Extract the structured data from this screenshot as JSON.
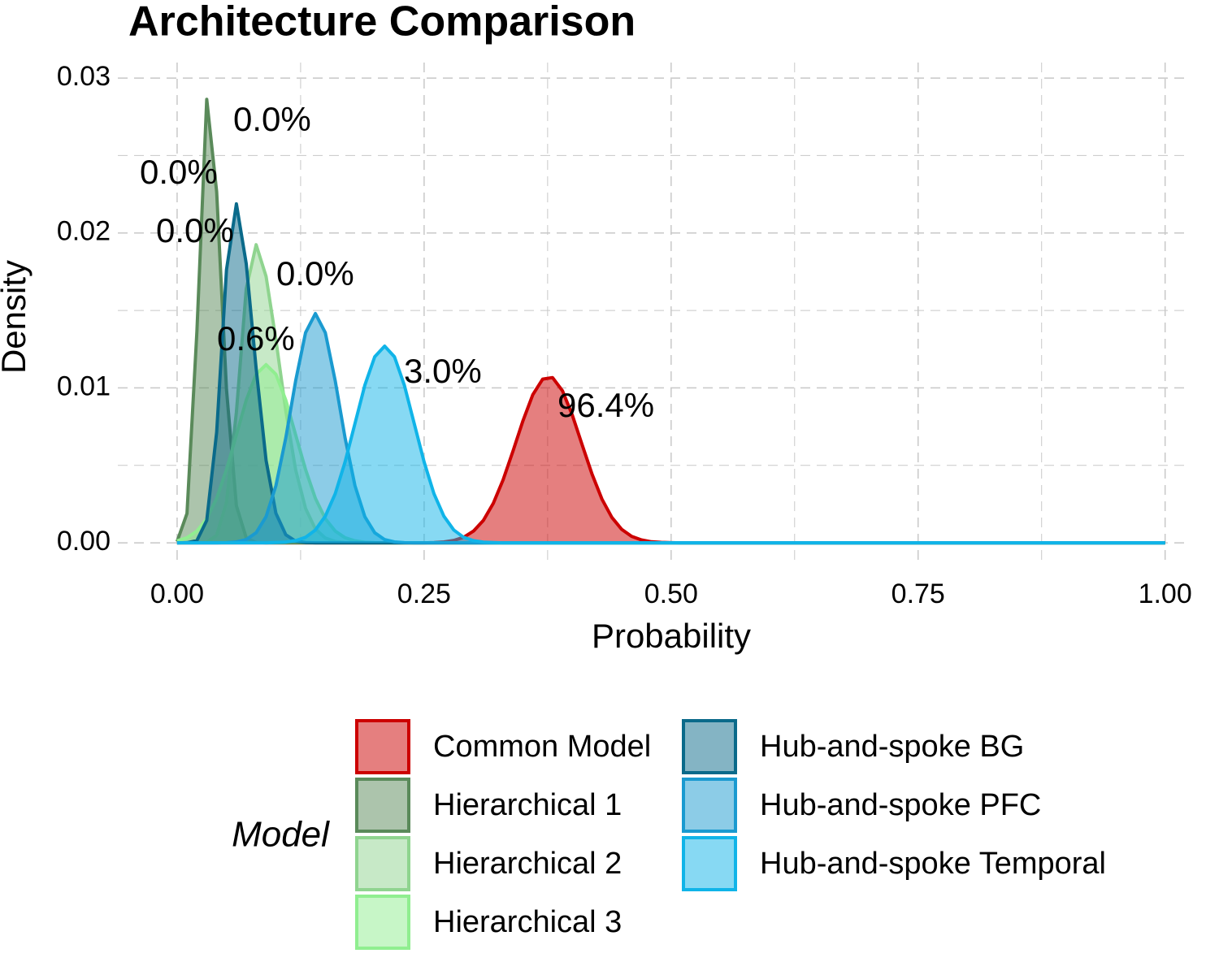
{
  "chart_data": {
    "type": "density",
    "title": "Architecture Comparison",
    "x_label": "Probability",
    "y_label": "Density",
    "legend_title": "Model",
    "xlim": [
      -0.06,
      1.02
    ],
    "ylim": [
      -0.0012,
      0.031
    ],
    "xticks": [
      {
        "value": 0,
        "label": "0.00"
      },
      {
        "value": 0.25,
        "label": "0.25"
      },
      {
        "value": 0.5,
        "label": "0.50"
      },
      {
        "value": 0.75,
        "label": "0.75"
      },
      {
        "value": 1,
        "label": "1.00"
      }
    ],
    "yticks": [
      {
        "value": 0,
        "label": "0.00"
      },
      {
        "value": 0.01,
        "label": "0.01"
      },
      {
        "value": 0.02,
        "label": "0.02"
      },
      {
        "value": 0.03,
        "label": "0.03"
      }
    ],
    "xminor": [
      0.125,
      0.375,
      0.625,
      0.875
    ],
    "yminor": [
      0.005,
      0.015,
      0.025
    ],
    "grid": true,
    "fill_opacity": 0.5,
    "x": [
      0,
      0.01,
      0.02,
      0.03,
      0.04,
      0.05,
      0.06,
      0.07,
      0.08,
      0.09,
      0.1,
      0.11,
      0.12,
      0.13,
      0.14,
      0.15,
      0.16,
      0.17,
      0.18,
      0.19,
      0.2,
      0.21,
      0.22,
      0.23,
      0.24,
      0.25,
      0.26,
      0.27,
      0.28,
      0.29,
      0.3,
      0.31,
      0.32,
      0.33,
      0.34,
      0.35,
      0.36,
      0.37,
      0.38,
      0.39,
      0.4,
      0.41,
      0.42,
      0.43,
      0.44,
      0.45,
      0.46,
      0.47,
      0.48,
      0.49,
      0.5,
      0.51,
      0.52,
      0.6,
      0.7,
      0.8,
      0.9,
      1
    ],
    "series": [
      {
        "name": "Common Model",
        "color": "#cc0000",
        "probability": 96.4,
        "probability_label": "96.4%",
        "values": [
          0,
          0,
          0,
          0,
          0,
          0,
          0,
          0,
          0,
          0,
          0,
          0,
          0,
          0,
          0,
          0,
          0,
          0,
          0,
          0,
          0,
          0,
          0,
          0,
          0,
          0,
          2e-05,
          6e-05,
          0.00016,
          0.00036,
          0.00076,
          0.00145,
          0.00255,
          0.00407,
          0.00593,
          0.00788,
          0.00956,
          0.01057,
          0.01067,
          0.00982,
          0.00825,
          0.00632,
          0.00442,
          0.00282,
          0.00164,
          0.00087,
          0.00042,
          0.00019,
          7e-05,
          3e-05,
          1e-05,
          0,
          0,
          0,
          0,
          0,
          0,
          0
        ]
      },
      {
        "name": "Hierarchical 1",
        "color": "#5a8a5a",
        "probability": 0.0,
        "probability_label": "0.0%",
        "values": [
          8e-05,
          0.0019,
          0.01365,
          0.02863,
          0.02266,
          0.0099,
          0.00239,
          0.00032,
          2e-05,
          0,
          0,
          0,
          0,
          0,
          0,
          0,
          0,
          0,
          0,
          0,
          0,
          0,
          0,
          0,
          0,
          0,
          0,
          0,
          0,
          0,
          0,
          0,
          0,
          0,
          0,
          0,
          0,
          0,
          0,
          0,
          0,
          0,
          0,
          0,
          0,
          0,
          0,
          0,
          0,
          0,
          0,
          0,
          0,
          0,
          0,
          0,
          0,
          0
        ]
      },
      {
        "name": "Hierarchical 2",
        "color": "#8fd48f",
        "probability": 0.0,
        "probability_label": "0.0%",
        "values": [
          0,
          0,
          0,
          5e-05,
          0.00048,
          0.00261,
          0.00844,
          0.01639,
          0.01924,
          0.0172,
          0.01311,
          0.00851,
          0.00471,
          0.00222,
          0.00089,
          0.00031,
          9e-05,
          2e-05,
          0,
          0,
          0,
          0,
          0,
          0,
          0,
          0,
          0,
          0,
          0,
          0,
          0,
          0,
          0,
          0,
          0,
          0,
          0,
          0,
          0,
          0,
          0,
          0,
          0,
          0,
          0,
          0,
          0,
          0,
          0,
          0,
          0,
          0,
          0,
          0,
          0,
          0,
          0,
          0
        ]
      },
      {
        "name": "Hierarchical 3",
        "color": "#90ee90",
        "probability": 0.6,
        "probability_label": "0.6%",
        "values": [
          0.00013,
          0.00033,
          0.00076,
          0.00156,
          0.00287,
          0.00473,
          0.00697,
          0.00921,
          0.01088,
          0.0115,
          0.01088,
          0.00921,
          0.00697,
          0.00473,
          0.00287,
          0.00156,
          0.00076,
          0.00033,
          0.00013,
          4e-05,
          1e-05,
          0,
          0,
          0,
          0,
          0,
          0,
          0,
          0,
          0,
          0,
          0,
          0,
          0,
          0,
          0,
          0,
          0,
          0,
          0,
          0,
          0,
          0,
          0,
          0,
          0,
          0,
          0,
          0,
          0,
          0,
          0,
          0,
          0,
          0,
          0,
          0,
          0
        ]
      },
      {
        "name": "Hub-and-spoke BG",
        "color": "#0a6a8a",
        "probability": 0.0,
        "probability_label": "0.0%",
        "values": [
          0,
          1e-05,
          0.00015,
          0.00145,
          0.00714,
          0.01762,
          0.02188,
          0.01802,
          0.01126,
          0.00533,
          0.00191,
          0.00052,
          0.00011,
          2e-05,
          0,
          0,
          0,
          0,
          0,
          0,
          0,
          0,
          0,
          0,
          0,
          0,
          0,
          0,
          0,
          0,
          0,
          0,
          0,
          0,
          0,
          0,
          0,
          0,
          0,
          0,
          0,
          0,
          0,
          0,
          0,
          0,
          0,
          0,
          0,
          0,
          0,
          0,
          0,
          0,
          0,
          0,
          0,
          0
        ]
      },
      {
        "name": "Hub-and-spoke PFC",
        "color": "#1a9ad0",
        "probability": 0.0,
        "probability_label": "0.0%",
        "values": [
          0,
          0,
          0,
          0,
          0,
          1e-05,
          6e-05,
          0.00021,
          0.00065,
          0.00169,
          0.00369,
          0.00678,
          0.01046,
          0.01357,
          0.0148,
          0.01357,
          0.01046,
          0.00678,
          0.00369,
          0.00169,
          0.00065,
          0.00021,
          6e-05,
          1e-05,
          0,
          0,
          0,
          0,
          0,
          0,
          0,
          0,
          0,
          0,
          0,
          0,
          0,
          0,
          0,
          0,
          0,
          0,
          0,
          0,
          0,
          0,
          0,
          0,
          0,
          0,
          0,
          0,
          0,
          0,
          0,
          0,
          0,
          0
        ]
      },
      {
        "name": "Hub-and-spoke Temporal",
        "color": "#10b4e8",
        "probability": 3.0,
        "probability_label": "3.0%",
        "values": [
          0,
          0,
          0,
          0,
          0,
          0,
          0,
          0,
          0,
          0,
          2e-05,
          5e-05,
          0.00014,
          0.00036,
          0.00083,
          0.00172,
          0.00317,
          0.00522,
          0.0077,
          0.01017,
          0.01201,
          0.0127,
          0.01201,
          0.01017,
          0.0077,
          0.00522,
          0.00317,
          0.00172,
          0.00083,
          0.00036,
          0.00014,
          5e-05,
          2e-05,
          0,
          0,
          0,
          0,
          0,
          0,
          0,
          0,
          0,
          0,
          0,
          0,
          0,
          0,
          0,
          0,
          0,
          0,
          0,
          0,
          0,
          0,
          0,
          0,
          0
        ]
      }
    ]
  }
}
